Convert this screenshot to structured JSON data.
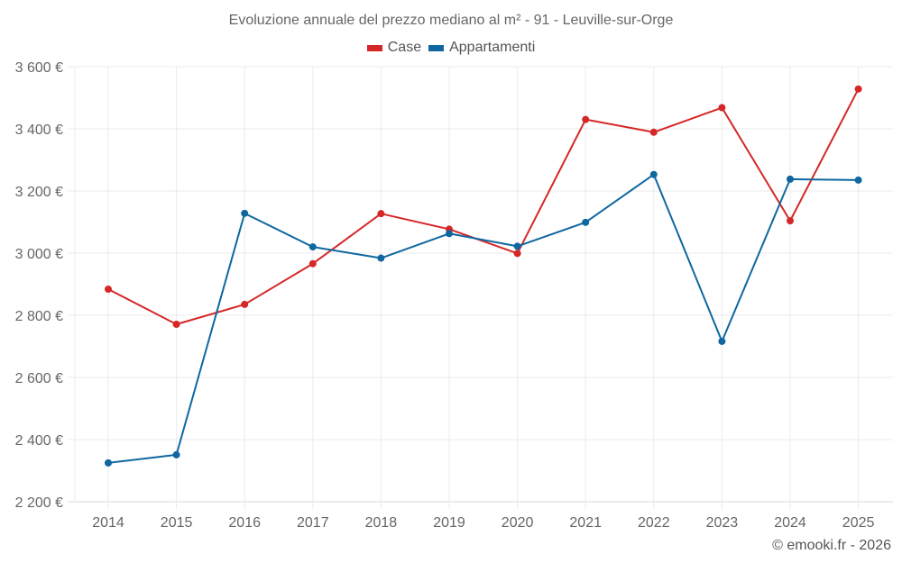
{
  "chart_data": {
    "type": "line",
    "title": "Evoluzione annuale del prezzo mediano al m² - 91 - Leuville-sur-Orge",
    "xlabel": "",
    "ylabel": "",
    "x": [
      "2014",
      "2015",
      "2016",
      "2017",
      "2018",
      "2019",
      "2020",
      "2021",
      "2022",
      "2023",
      "2024",
      "2025"
    ],
    "ylim": [
      2200,
      3600
    ],
    "yticks": [
      2200,
      2400,
      2600,
      2800,
      3000,
      3200,
      3400,
      3600
    ],
    "ytick_labels": [
      "2 200 €",
      "2 400 €",
      "2 600 €",
      "2 800 €",
      "3 000 €",
      "3 200 €",
      "3 400 €",
      "3 600 €"
    ],
    "grid": true,
    "legend_position": "top-center",
    "series": [
      {
        "name": "Case",
        "color": "#d62728",
        "values": [
          2884,
          2771,
          2835,
          2966,
          3127,
          3077,
          2999,
          3430,
          3389,
          3468,
          3104,
          3528
        ]
      },
      {
        "name": "Appartamenti",
        "color": "#0f67a0",
        "values": [
          2325,
          2351,
          3128,
          3020,
          2984,
          3063,
          3022,
          3099,
          3253,
          2716,
          3238,
          3235
        ]
      }
    ]
  },
  "credit": "© emooki.fr - 2026"
}
